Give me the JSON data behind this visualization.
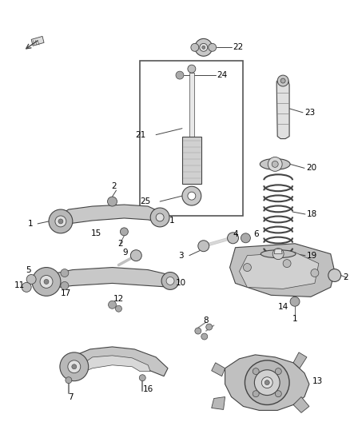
{
  "bg_color": "#ffffff",
  "line_color": "#444444",
  "text_color": "#000000",
  "figure_width": 4.38,
  "figure_height": 5.33,
  "dpi": 100
}
